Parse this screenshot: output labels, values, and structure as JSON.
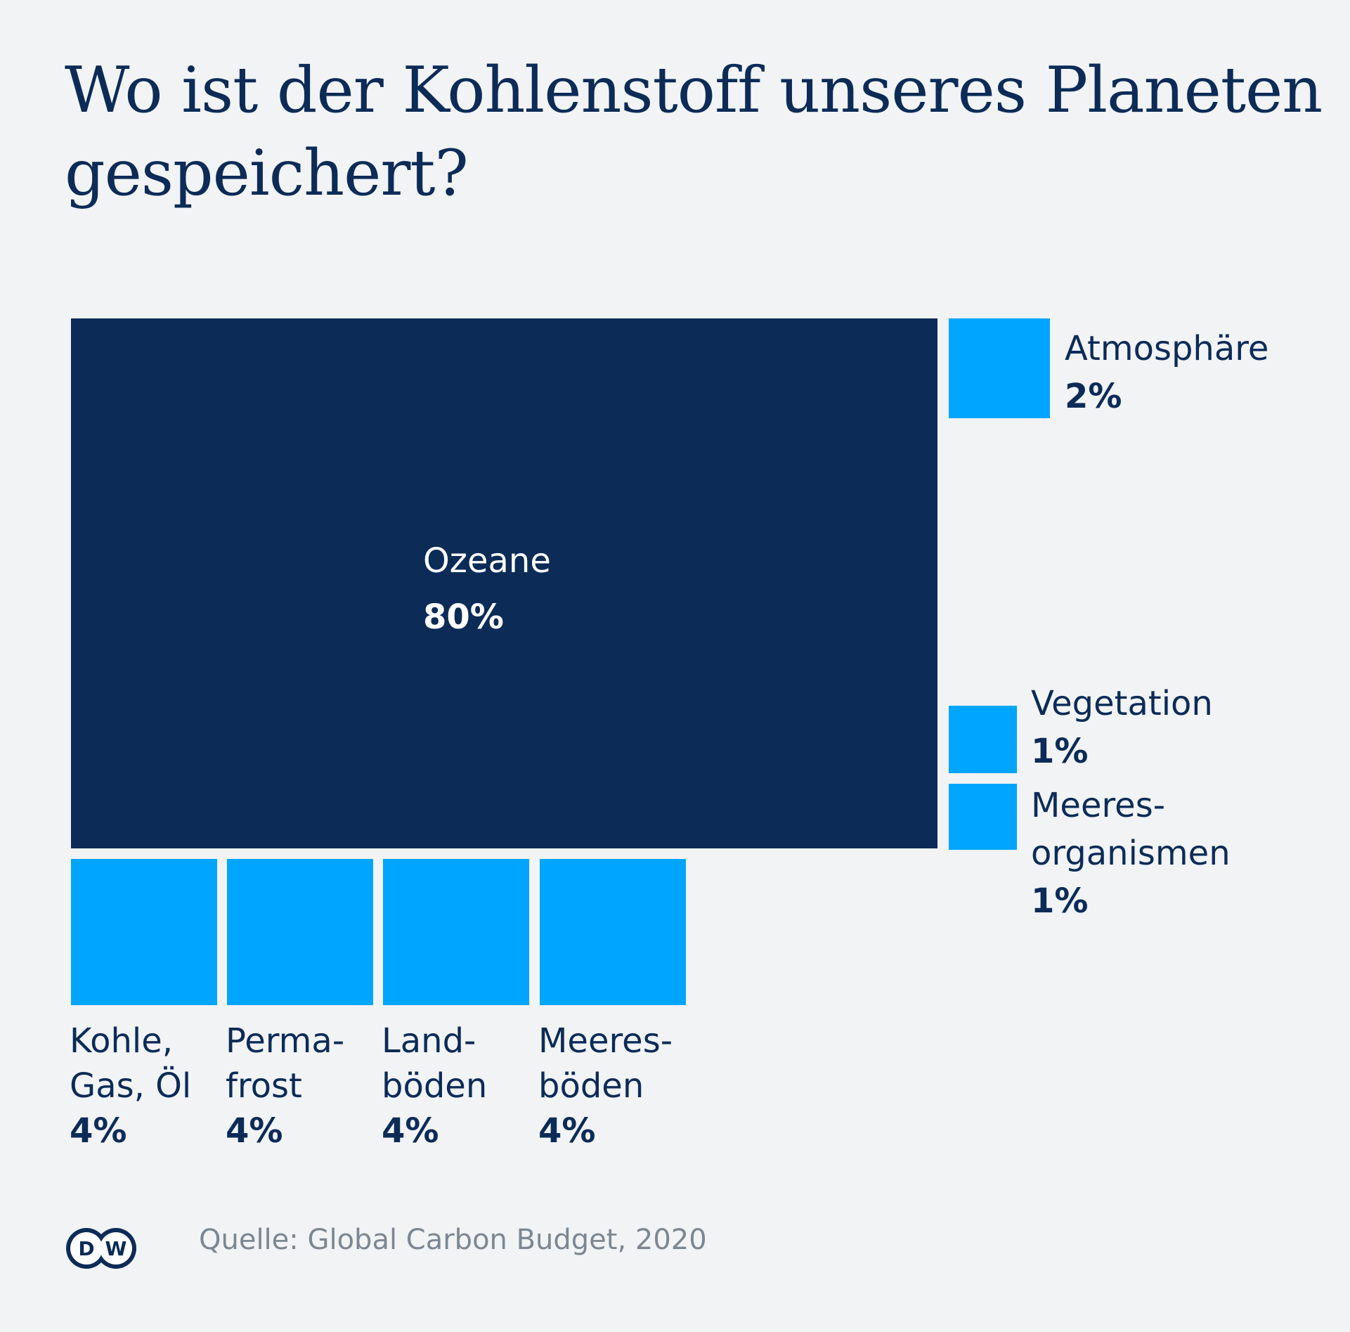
{
  "title": {
    "line1": "Wo ist der Kohlenstoff unseres Planeten",
    "line2": "gespeichert?"
  },
  "source": "Quelle: Global Carbon Budget, 2020",
  "logo": {
    "text": "DW",
    "icon": "dw-logo-icon"
  },
  "colors": {
    "background": "#f1f3f5",
    "primary": "#0c2b57",
    "accent": "#00a5ff",
    "source_text": "#7d8791"
  },
  "chart_data": {
    "type": "treemap",
    "unit": "%",
    "items": [
      {
        "name": "Ozeane",
        "label_lines": [
          "Ozeane"
        ],
        "value": 80,
        "value_label": "80%",
        "color": "#0c2b57"
      },
      {
        "name": "Atmosphäre",
        "label_lines": [
          "Atmosphäre"
        ],
        "value": 2,
        "value_label": "2%",
        "color": "#00a5ff"
      },
      {
        "name": "Vegetation",
        "label_lines": [
          "Vegetation"
        ],
        "value": 1,
        "value_label": "1%",
        "color": "#00a5ff"
      },
      {
        "name": "Meeres-organismen",
        "label_lines": [
          "Meeres-",
          "organismen"
        ],
        "value": 1,
        "value_label": "1%",
        "color": "#00a5ff"
      },
      {
        "name": "Kohle, Gas, Öl",
        "label_lines": [
          "Kohle,",
          "Gas, Öl"
        ],
        "value": 4,
        "value_label": "4%",
        "color": "#00a5ff"
      },
      {
        "name": "Permafrost",
        "label_lines": [
          "Perma-",
          "frost"
        ],
        "value": 4,
        "value_label": "4%",
        "color": "#00a5ff"
      },
      {
        "name": "Landböden",
        "label_lines": [
          "Land-",
          "böden"
        ],
        "value": 4,
        "value_label": "4%",
        "color": "#00a5ff"
      },
      {
        "name": "Meeresböden",
        "label_lines": [
          "Meeres-",
          "böden"
        ],
        "value": 4,
        "value_label": "4%",
        "color": "#00a5ff"
      }
    ]
  }
}
